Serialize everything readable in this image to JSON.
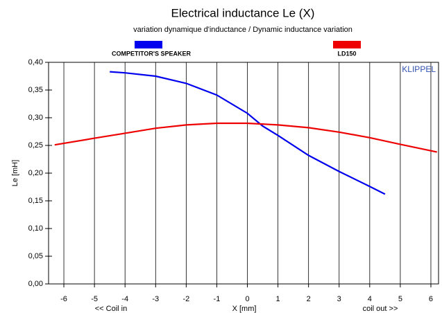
{
  "chart_data": {
    "type": "line",
    "title": "Electrical inductance Le (X)",
    "subtitle": "variation dynamique d'inductance / Dynamic inductance variation",
    "x_label": "X [mm]",
    "y_label": "Le [mH]",
    "annotations": [
      "<< Coil in",
      "coil out >>",
      "KLIPPEL"
    ],
    "xlim": [
      -6.5,
      6.25
    ],
    "ylim": [
      0,
      0.4
    ],
    "xticks": [
      -6,
      -5,
      -4,
      -3,
      -2,
      -1,
      0,
      1,
      2,
      3,
      4,
      5,
      6
    ],
    "yticks": [
      {
        "value": 0,
        "label": "0,00"
      },
      {
        "value": 0.05,
        "label": "0,05"
      },
      {
        "value": 0.1,
        "label": "0,10"
      },
      {
        "value": 0.15,
        "label": "0,15"
      },
      {
        "value": 0.2,
        "label": "0,20"
      },
      {
        "value": 0.25,
        "label": "0,25"
      },
      {
        "value": 0.3,
        "label": "0,30"
      },
      {
        "value": 0.35,
        "label": "0,35"
      },
      {
        "value": 0.4,
        "label": "0,40"
      }
    ],
    "grid": true,
    "series": [
      {
        "name": "COMPETITOR'S SPEAKER",
        "color": "#0000ee",
        "x": [
          -4.5,
          -4,
          -3,
          -2,
          -1,
          0,
          0.5,
          1,
          2,
          3,
          4,
          4.5
        ],
        "values": [
          0.383,
          0.381,
          0.375,
          0.362,
          0.341,
          0.308,
          0.285,
          0.268,
          0.232,
          0.203,
          0.176,
          0.162
        ]
      },
      {
        "name": "LD150",
        "color": "#ee0000",
        "x": [
          -6.3,
          -5,
          -4,
          -3,
          -2,
          -1,
          0,
          1,
          2,
          3,
          4,
          5,
          6.2
        ],
        "values": [
          0.251,
          0.263,
          0.272,
          0.281,
          0.287,
          0.29,
          0.29,
          0.287,
          0.282,
          0.274,
          0.264,
          0.252,
          0.238
        ]
      }
    ]
  }
}
